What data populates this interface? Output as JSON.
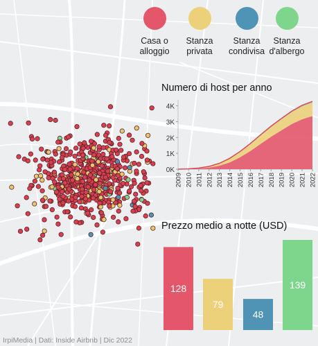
{
  "legend": [
    {
      "label_1": "Casa o",
      "label_2": "alloggio",
      "color": "#e4566a"
    },
    {
      "label_1": "Stanza",
      "label_2": "privata",
      "color": "#ecd07a"
    },
    {
      "label_1": "Stanza",
      "label_2": "condivisa",
      "color": "#4f93b5"
    },
    {
      "label_1": "Stanza",
      "label_2": "d'albergo",
      "color": "#7ed58c"
    }
  ],
  "hosts_title": "Numero di host per anno",
  "price_title": "Prezzo medio a notte (USD)",
  "credit": "IrpiMedia | Dati: Inside Airbnb | Dic 2022",
  "chart_data": [
    {
      "type": "area",
      "title": "Numero di host per anno",
      "stacked": true,
      "x": [
        "2009",
        "2010",
        "2011",
        "2012",
        "2013",
        "2014",
        "2015",
        "2016",
        "2017",
        "2018",
        "2019",
        "2020",
        "2021",
        "2022"
      ],
      "ylim": [
        0,
        4200
      ],
      "yticks": [
        0,
        1000,
        2000,
        3000,
        4000
      ],
      "ytick_labels": [
        "0K",
        "1K",
        "2K",
        "3K",
        "4K"
      ],
      "series": [
        {
          "name": "Casa o alloggio",
          "color": "#e4566a",
          "values": [
            0,
            10,
            40,
            100,
            220,
            430,
            750,
            1150,
            1600,
            2050,
            2450,
            2850,
            3150,
            3350
          ]
        },
        {
          "name": "Stanza privata",
          "color": "#ecd07a",
          "values": [
            0,
            10,
            30,
            70,
            140,
            240,
            340,
            440,
            540,
            620,
            700,
            760,
            820,
            860
          ]
        },
        {
          "name": "Stanza condivisa",
          "color": "#4f93b5",
          "values": [
            0,
            0,
            2,
            4,
            6,
            8,
            10,
            12,
            14,
            15,
            16,
            16,
            17,
            18
          ]
        },
        {
          "name": "Stanza d'albergo",
          "color": "#7ed58c",
          "values": [
            0,
            0,
            0,
            0,
            5,
            10,
            15,
            20,
            25,
            30,
            35,
            40,
            45,
            50
          ]
        }
      ]
    },
    {
      "type": "bar",
      "title": "Prezzo medio a notte (USD)",
      "categories": [
        "Casa o alloggio",
        "Stanza privata",
        "Stanza condivisa",
        "Stanza d'albergo"
      ],
      "values": [
        128,
        79,
        48,
        139
      ],
      "colors": [
        "#e4566a",
        "#ecd07a",
        "#4f93b5",
        "#7ed58c"
      ],
      "ylim": [
        0,
        139
      ]
    }
  ]
}
